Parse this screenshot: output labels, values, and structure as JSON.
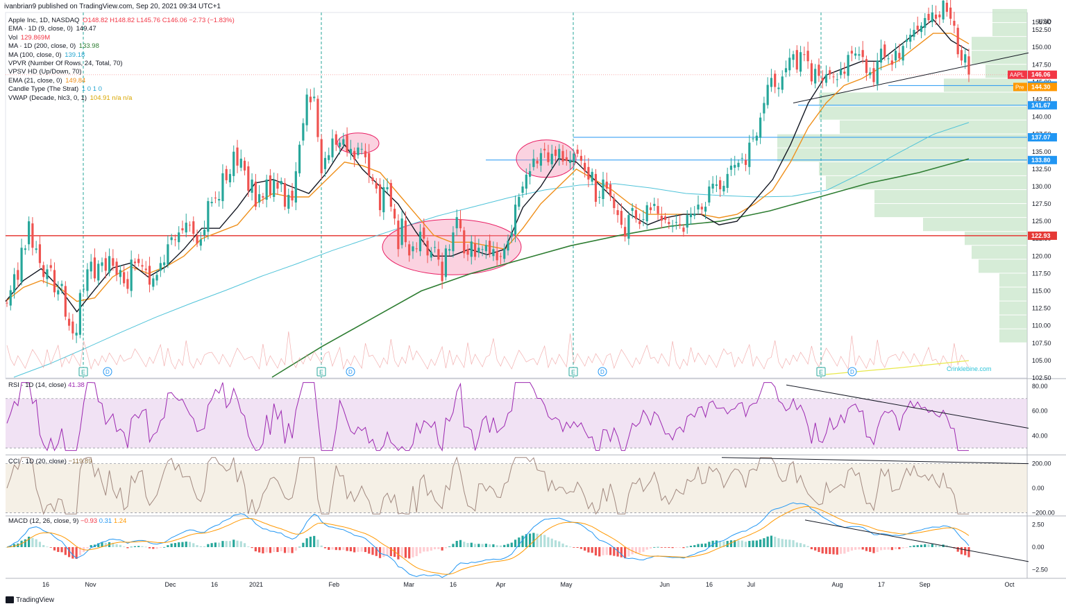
{
  "header": {
    "published": "ivanbrian9 published on TradingView.com, Sep 20, 2021 09:34 UTC+1"
  },
  "legend": [
    {
      "text": "Apple Inc, 1D, NASDAQ",
      "values": "O148.82  H148.82  L145.76  C146.06  −2.73 (−1.83%)",
      "color": "#f23645"
    },
    {
      "text": "EMA · 1D (9, close, 0)",
      "values": "149.47",
      "color": "#131722"
    },
    {
      "text": "Vol",
      "values": "129.869M",
      "color": "#f23645"
    },
    {
      "text": "MA · 1D (200, close, 0)",
      "values": "133.98",
      "color": "#2e7d32"
    },
    {
      "text": "MA (100, close, 0)",
      "values": "139.18",
      "color": "#26a6d1"
    },
    {
      "text": "VPVR (Number Of Rows, 24, Total, 70)",
      "values": "",
      "color": "#131722"
    },
    {
      "text": "VPSV HD (Up/Down, 70)",
      "values": "",
      "color": "#131722"
    },
    {
      "text": "EMA (21, close, 0)",
      "values": "149.84",
      "color": "#ef8f1a"
    },
    {
      "text": "Candle Type (The Strat)",
      "values": "1  0  1  0",
      "color": "#26a6d1"
    },
    {
      "text": "VWAP (Decade, hlc3, 0, 1)",
      "values": "104.91  n/a  n/a",
      "color": "#d9a600"
    }
  ],
  "indicators": {
    "rsi": "RSI · 1D (14, close)",
    "rsi_value": "41.38",
    "cci": "CCI · 1D (20, close)",
    "cci_value": "−119.89",
    "macd": "MACD (12, 26, close, 9)",
    "macd_values": [
      "−0.93",
      "0.31",
      "1.24"
    ]
  },
  "footer": {
    "brand": "TradingView"
  },
  "watermark": "Crinklebine.com",
  "chart_data": {
    "type": "candlestick",
    "currency": "USD",
    "x_tick_labels": [
      "16",
      "Nov",
      "Dec",
      "16",
      "2021",
      "Feb",
      "Mar",
      "16",
      "Apr",
      "May",
      "Jun",
      "16",
      "Jul",
      "Aug",
      "17",
      "Sep",
      "Oct"
    ],
    "price_axis_ticks": [
      "102.50",
      "105.00",
      "107.50",
      "110.00",
      "112.50",
      "115.00",
      "117.50",
      "120.00",
      "122.50",
      "125.00",
      "127.50",
      "130.00",
      "132.50",
      "135.00",
      "137.50",
      "140.00",
      "142.50",
      "145.00",
      "147.50",
      "150.00",
      "152.50"
    ],
    "price_ylim": [
      102.5,
      155
    ],
    "price_labels": [
      {
        "text": "AAPL",
        "value": "146.06",
        "price": 146.06,
        "color": "#f23645"
      },
      {
        "text": "",
        "value": "144.50",
        "price": 144.5,
        "color": "#2196f3"
      },
      {
        "text": "Pre",
        "value": "144.30",
        "price": 144.3,
        "color": "#ff9800"
      },
      {
        "text": "",
        "value": "141.67",
        "price": 141.67,
        "color": "#2196f3"
      },
      {
        "text": "",
        "value": "137.07",
        "price": 137.07,
        "color": "#2196f3"
      },
      {
        "text": "",
        "value": "133.80",
        "price": 133.8,
        "color": "#2196f3"
      },
      {
        "text": "",
        "value": "122.93",
        "price": 122.93,
        "color": "#e53935"
      }
    ],
    "closes": [
      113.2,
      115.1,
      117.4,
      116.6,
      121.2,
      121.1,
      125.0,
      121.2,
      121.1,
      119.0,
      117.0,
      118.1,
      118.3,
      114.8,
      115.1,
      116.0,
      111.3,
      110.0,
      108.9,
      109.0,
      114.7,
      115.3,
      118.1,
      119.2,
      116.8,
      118.9,
      119.1,
      117.9,
      120.0,
      118.6,
      117.3,
      118.0,
      116.1,
      115.3,
      119.5,
      119.0,
      119.0,
      118.5,
      118.0,
      115.9,
      116.8,
      117.3,
      119.0,
      119.1,
      121.7,
      122.7,
      122.3,
      123.4,
      123.7,
      124.8,
      124.4,
      123.2,
      121.8,
      122.4,
      123.8,
      127.9,
      127.8,
      128.3,
      128.2,
      131.9,
      130.9,
      131.8,
      135.0,
      133.0,
      134.0,
      132.3,
      129.4,
      131.0,
      127.1,
      128.9,
      128.4,
      131.0,
      128.8,
      130.9,
      129.7,
      130.8,
      127.1,
      128.8,
      128.0,
      132.2,
      136.0,
      139.1,
      143.2,
      142.1,
      142.9,
      137.1,
      131.9,
      134.1,
      134.5,
      136.9,
      136.0,
      136.3,
      136.8,
      135.0,
      135.4,
      133.9,
      135.6,
      135.4,
      134.2,
      131.6,
      130.8,
      129.7,
      126.6,
      129.9,
      129.9,
      127.1,
      125.4,
      121.0,
      125.4,
      122.0,
      120.1,
      121.4,
      121.0,
      123.5,
      122.5,
      120.1,
      120.6,
      121.3,
      119.5,
      116.4,
      121.1,
      121.0,
      123.4,
      125.6,
      124.0,
      120.4,
      120.2,
      122.1,
      119.9,
      121.2,
      121.0,
      121.6,
      120.3,
      121.0,
      119.4,
      119.9,
      121.1,
      122.2,
      123.4,
      127.4,
      128.5,
      130.0,
      131.7,
      132.2,
      134.0,
      133.3,
      134.8,
      135.2,
      133.5,
      134.7,
      134.4,
      135.4,
      133.6,
      133.7,
      133.8,
      134.7,
      134.7,
      133.7,
      132.2,
      131.0,
      132.1,
      127.8,
      128.5,
      131.0,
      129.7,
      128.6,
      126.9,
      125.9,
      124.5,
      122.8,
      125.9,
      126.9,
      125.3,
      124.6,
      125.3,
      127.3,
      126.6,
      127.5,
      126.1,
      125.1,
      125.2,
      124.6,
      124.3,
      124.9,
      124.4,
      123.5,
      125.9,
      126.1,
      126.1,
      127.4,
      126.7,
      127.1,
      130.0,
      130.4,
      130.3,
      129.6,
      130.1,
      131.8,
      133.0,
      133.1,
      133.4,
      134.1,
      133.1,
      136.3,
      136.9,
      137.3,
      139.9,
      142.0,
      144.6,
      145.6,
      144.3,
      144.2,
      145.8,
      147.0,
      148.5,
      149.0,
      146.8,
      149.3,
      148.9,
      148.0,
      145.1,
      146.9,
      145.9,
      145.2,
      146.1,
      146.1,
      145.7,
      145.4,
      146.8,
      146.2,
      148.9,
      149.1,
      149.1,
      149.0,
      148.6,
      146.3,
      146.4,
      145.0,
      148.1,
      149.8,
      148.6,
      148.4,
      147.5,
      149.5,
      148.4,
      150.2,
      151.1,
      151.8,
      152.5,
      152.5,
      153.1,
      154.2,
      153.9,
      155.0,
      154.1,
      154.3,
      156.7,
      155.1,
      154.1,
      153.1,
      149.0,
      148.1,
      149.0,
      146.1
    ],
    "ema9_anchor": [
      113.5,
      116.5,
      118.2,
      115.5,
      112.0,
      115.2,
      118.3,
      119.0,
      117.0,
      118.5,
      121.0,
      124.0,
      124.0,
      127.0,
      130.5,
      131.0,
      130.0,
      129.0,
      132.0,
      136.0,
      132.5,
      130.0,
      127.5,
      123.5,
      120.0,
      120.0,
      121.0,
      120.2,
      121.0,
      127.0,
      130.0,
      134.0,
      133.5,
      131.0,
      128.5,
      126.0,
      124.5,
      125.5,
      126.0,
      126.0,
      124.5,
      125.0,
      128.0,
      131.0,
      136.0,
      142.0,
      146.0,
      147.0,
      148.0,
      148.0,
      150.0,
      152.0,
      154.0,
      151.0,
      149.5
    ],
    "ema21_anchor": [
      113.5,
      115.5,
      116.5,
      115.5,
      113.5,
      114.0,
      117.0,
      118.5,
      117.5,
      118.5,
      120.0,
      122.5,
      123.5,
      124.5,
      127.5,
      129.0,
      128.5,
      128.5,
      131.0,
      133.5,
      133.0,
      132.0,
      129.0,
      126.0,
      123.0,
      122.0,
      122.0,
      121.5,
      121.0,
      124.0,
      127.5,
      130.0,
      132.5,
      131.0,
      129.5,
      127.5,
      126.0,
      126.0,
      126.0,
      126.0,
      125.5,
      126.0,
      127.5,
      129.5,
      133.5,
      138.5,
      142.0,
      144.5,
      145.5,
      147.0,
      148.0,
      150.0,
      152.0,
      152.0,
      150.5
    ],
    "ma100_anchor": [
      102.6,
      104.5,
      106.7,
      109.0,
      111.2,
      113.2,
      115.1,
      117.1,
      118.9,
      120.8,
      122.5,
      124.2,
      125.8,
      127.1,
      128.4,
      129.5,
      130.2,
      130.4,
      129.8,
      129.0,
      128.7,
      128.5,
      128.6,
      129.5,
      132.0,
      134.8,
      137.5,
      139.2
    ],
    "ma200_anchor": [
      102.6,
      107.0,
      111.0,
      115.0,
      117.5,
      119.5,
      121.5,
      123.0,
      124.3,
      125.0,
      126.5,
      128.5,
      130.5,
      132.0,
      133.98
    ],
    "rsi": {
      "ylim": [
        25,
        85
      ],
      "band": [
        30,
        70
      ],
      "ticks": [
        "80.00",
        "60.00",
        "40.00"
      ],
      "value": 41.38
    },
    "cci": {
      "ylim": [
        -220,
        260
      ],
      "band": [
        -200,
        200
      ],
      "ticks": [
        "200.00",
        "0.00",
        "−200.00"
      ],
      "value": -119.89
    },
    "macd": {
      "ylim": [
        -3.3,
        3.3
      ],
      "ticks": [
        "2.50",
        "0.00",
        "−2.50"
      ],
      "values": [
        -0.93,
        0.31,
        1.24
      ]
    }
  }
}
